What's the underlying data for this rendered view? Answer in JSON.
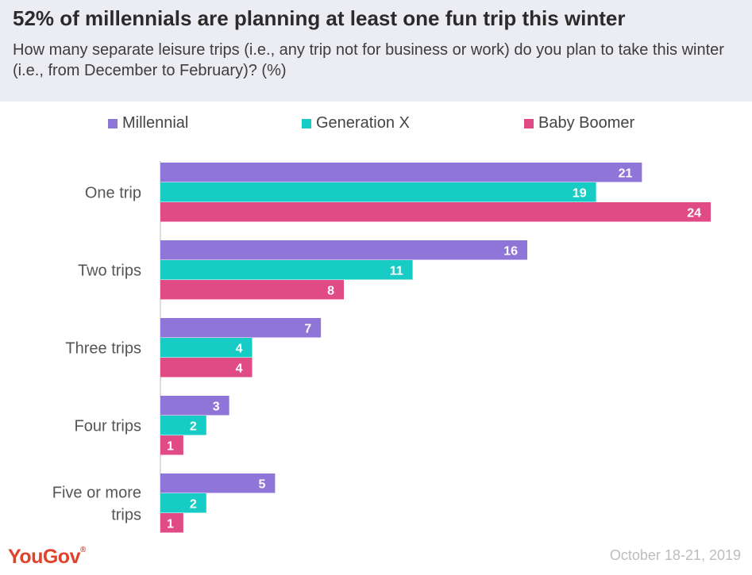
{
  "header": {
    "title": "52% of millennials are planning at least one fun trip this winter",
    "subtitle": "How many separate leisure trips (i.e., any trip not for business or work) do you plan to take this winter (i.e., from December to February)? (%)"
  },
  "footer": {
    "logo_text": "YouGov",
    "date": "October 18-21, 2019"
  },
  "colors": {
    "millennial": "#9075d8",
    "generation_x": "#17ccc4",
    "baby_boomer": "#e04b86"
  },
  "chart_data": {
    "type": "bar",
    "orientation": "horizontal",
    "categories": [
      [
        "One trip"
      ],
      [
        "Two trips"
      ],
      [
        "Three trips"
      ],
      [
        "Four trips"
      ],
      [
        "Five or more",
        "trips"
      ]
    ],
    "series": [
      {
        "name": "Millennial",
        "color": "#9075d8",
        "values": [
          21,
          16,
          7,
          3,
          5
        ]
      },
      {
        "name": "Generation X",
        "color": "#17ccc4",
        "values": [
          19,
          11,
          4,
          2,
          2
        ]
      },
      {
        "name": "Baby Boomer",
        "color": "#e04b86",
        "values": [
          24,
          8,
          4,
          1,
          1
        ]
      }
    ],
    "xlim": [
      0,
      24
    ],
    "legend": "top",
    "grid": false,
    "title": "52% of millennials are planning at least one fun trip this winter",
    "xlabel": "",
    "ylabel": ""
  }
}
